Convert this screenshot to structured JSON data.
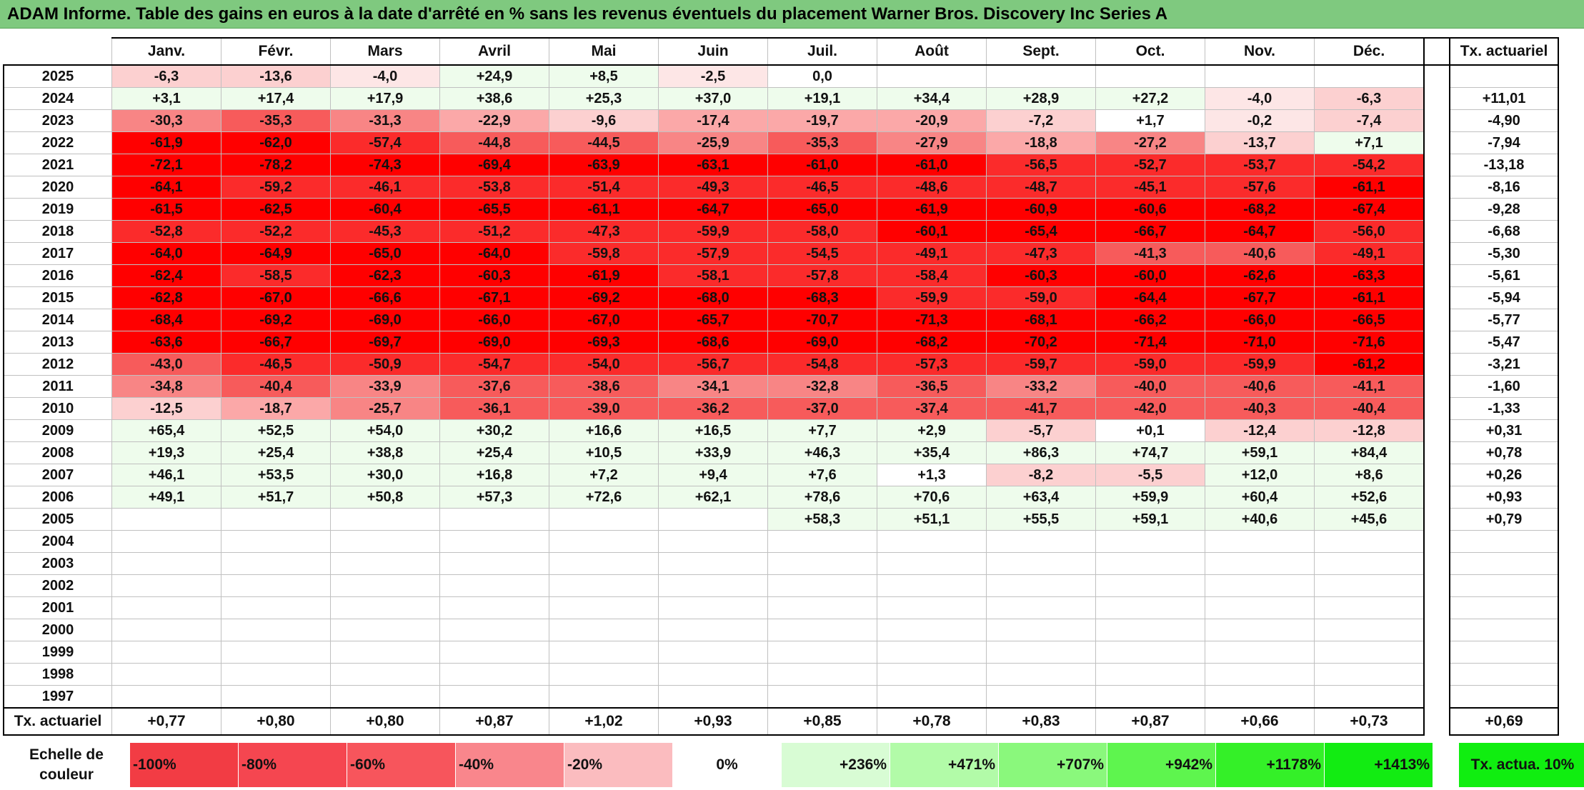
{
  "title": "ADAM Informe. Table des gains en euros à la date d'arrêté en % sans les revenus éventuels du placement Warner Bros. Discovery Inc Series A",
  "months": [
    "Janv.",
    "Févr.",
    "Mars",
    "Avril",
    "Mai",
    "Juin",
    "Juil.",
    "Août",
    "Sept.",
    "Oct.",
    "Nov.",
    "Déc."
  ],
  "ta_header": "Tx. actuariel",
  "rows": [
    {
      "year": "2025",
      "values": [
        "-6,3",
        "-13,6",
        "-4,0",
        "+24,9",
        "+8,5",
        "-2,5",
        "0,0",
        "",
        "",
        "",
        "",
        ""
      ],
      "ta": ""
    },
    {
      "year": "2024",
      "values": [
        "+3,1",
        "+17,4",
        "+17,9",
        "+38,6",
        "+25,3",
        "+37,0",
        "+19,1",
        "+34,4",
        "+28,9",
        "+27,2",
        "-4,0",
        "-6,3"
      ],
      "ta": "+11,01"
    },
    {
      "year": "2023",
      "values": [
        "-30,3",
        "-35,3",
        "-31,3",
        "-22,9",
        "-9,6",
        "-17,4",
        "-19,7",
        "-20,9",
        "-7,2",
        "+1,7",
        "-0,2",
        "-7,4"
      ],
      "ta": "-4,90"
    },
    {
      "year": "2022",
      "values": [
        "-61,9",
        "-62,0",
        "-57,4",
        "-44,8",
        "-44,5",
        "-25,9",
        "-35,3",
        "-27,9",
        "-18,8",
        "-27,2",
        "-13,7",
        "+7,1"
      ],
      "ta": "-7,94"
    },
    {
      "year": "2021",
      "values": [
        "-72,1",
        "-78,2",
        "-74,3",
        "-69,4",
        "-63,9",
        "-63,1",
        "-61,0",
        "-61,0",
        "-56,5",
        "-52,7",
        "-53,7",
        "-54,2"
      ],
      "ta": "-13,18"
    },
    {
      "year": "2020",
      "values": [
        "-64,1",
        "-59,2",
        "-46,1",
        "-53,8",
        "-51,4",
        "-49,3",
        "-46,5",
        "-48,6",
        "-48,7",
        "-45,1",
        "-57,6",
        "-61,1"
      ],
      "ta": "-8,16"
    },
    {
      "year": "2019",
      "values": [
        "-61,5",
        "-62,5",
        "-60,4",
        "-65,5",
        "-61,1",
        "-64,7",
        "-65,0",
        "-61,9",
        "-60,9",
        "-60,6",
        "-68,2",
        "-67,4"
      ],
      "ta": "-9,28"
    },
    {
      "year": "2018",
      "values": [
        "-52,8",
        "-52,2",
        "-45,3",
        "-51,2",
        "-47,3",
        "-59,9",
        "-58,0",
        "-60,1",
        "-65,4",
        "-66,7",
        "-64,7",
        "-56,0"
      ],
      "ta": "-6,68"
    },
    {
      "year": "2017",
      "values": [
        "-64,0",
        "-64,9",
        "-65,0",
        "-64,0",
        "-59,8",
        "-57,9",
        "-54,5",
        "-49,1",
        "-47,3",
        "-41,3",
        "-40,6",
        "-49,1"
      ],
      "ta": "-5,30"
    },
    {
      "year": "2016",
      "values": [
        "-62,4",
        "-58,5",
        "-62,3",
        "-60,3",
        "-61,9",
        "-58,1",
        "-57,8",
        "-58,4",
        "-60,3",
        "-60,0",
        "-62,6",
        "-63,3"
      ],
      "ta": "-5,61"
    },
    {
      "year": "2015",
      "values": [
        "-62,8",
        "-67,0",
        "-66,6",
        "-67,1",
        "-69,2",
        "-68,0",
        "-68,3",
        "-59,9",
        "-59,0",
        "-64,4",
        "-67,7",
        "-61,1"
      ],
      "ta": "-5,94"
    },
    {
      "year": "2014",
      "values": [
        "-68,4",
        "-69,2",
        "-69,0",
        "-66,0",
        "-67,0",
        "-65,7",
        "-70,7",
        "-71,3",
        "-68,1",
        "-66,2",
        "-66,0",
        "-66,5"
      ],
      "ta": "-5,77"
    },
    {
      "year": "2013",
      "values": [
        "-63,6",
        "-66,7",
        "-69,7",
        "-69,0",
        "-69,3",
        "-68,6",
        "-69,0",
        "-68,2",
        "-70,2",
        "-71,4",
        "-71,0",
        "-71,6"
      ],
      "ta": "-5,47"
    },
    {
      "year": "2012",
      "values": [
        "-43,0",
        "-46,5",
        "-50,9",
        "-54,7",
        "-54,0",
        "-56,7",
        "-54,8",
        "-57,3",
        "-59,7",
        "-59,0",
        "-59,9",
        "-61,2"
      ],
      "ta": "-3,21"
    },
    {
      "year": "2011",
      "values": [
        "-34,8",
        "-40,4",
        "-33,9",
        "-37,6",
        "-38,6",
        "-34,1",
        "-32,8",
        "-36,5",
        "-33,2",
        "-40,0",
        "-40,6",
        "-41,1"
      ],
      "ta": "-1,60"
    },
    {
      "year": "2010",
      "values": [
        "-12,5",
        "-18,7",
        "-25,7",
        "-36,1",
        "-39,0",
        "-36,2",
        "-37,0",
        "-37,4",
        "-41,7",
        "-42,0",
        "-40,3",
        "-40,4"
      ],
      "ta": "-1,33"
    },
    {
      "year": "2009",
      "values": [
        "+65,4",
        "+52,5",
        "+54,0",
        "+30,2",
        "+16,6",
        "+16,5",
        "+7,7",
        "+2,9",
        "-5,7",
        "+0,1",
        "-12,4",
        "-12,8"
      ],
      "ta": "+0,31"
    },
    {
      "year": "2008",
      "values": [
        "+19,3",
        "+25,4",
        "+38,8",
        "+25,4",
        "+10,5",
        "+33,9",
        "+46,3",
        "+35,4",
        "+86,3",
        "+74,7",
        "+59,1",
        "+84,4"
      ],
      "ta": "+0,78"
    },
    {
      "year": "2007",
      "values": [
        "+46,1",
        "+53,5",
        "+30,0",
        "+16,8",
        "+7,2",
        "+9,4",
        "+7,6",
        "+1,3",
        "-8,2",
        "-5,5",
        "+12,0",
        "+8,6"
      ],
      "ta": "+0,26"
    },
    {
      "year": "2006",
      "values": [
        "+49,1",
        "+51,7",
        "+50,8",
        "+57,3",
        "+72,6",
        "+62,1",
        "+78,6",
        "+70,6",
        "+63,4",
        "+59,9",
        "+60,4",
        "+52,6"
      ],
      "ta": "+0,93"
    },
    {
      "year": "2005",
      "values": [
        "",
        "",
        "",
        "",
        "",
        "",
        "+58,3",
        "+51,1",
        "+55,5",
        "+59,1",
        "+40,6",
        "+45,6"
      ],
      "ta": "+0,79"
    },
    {
      "year": "2004",
      "values": [
        "",
        "",
        "",
        "",
        "",
        "",
        "",
        "",
        "",
        "",
        "",
        ""
      ],
      "ta": ""
    },
    {
      "year": "2003",
      "values": [
        "",
        "",
        "",
        "",
        "",
        "",
        "",
        "",
        "",
        "",
        "",
        ""
      ],
      "ta": ""
    },
    {
      "year": "2002",
      "values": [
        "",
        "",
        "",
        "",
        "",
        "",
        "",
        "",
        "",
        "",
        "",
        ""
      ],
      "ta": ""
    },
    {
      "year": "2001",
      "values": [
        "",
        "",
        "",
        "",
        "",
        "",
        "",
        "",
        "",
        "",
        "",
        ""
      ],
      "ta": ""
    },
    {
      "year": "2000",
      "values": [
        "",
        "",
        "",
        "",
        "",
        "",
        "",
        "",
        "",
        "",
        "",
        ""
      ],
      "ta": ""
    },
    {
      "year": "1999",
      "values": [
        "",
        "",
        "",
        "",
        "",
        "",
        "",
        "",
        "",
        "",
        "",
        ""
      ],
      "ta": ""
    },
    {
      "year": "1998",
      "values": [
        "",
        "",
        "",
        "",
        "",
        "",
        "",
        "",
        "",
        "",
        "",
        ""
      ],
      "ta": ""
    },
    {
      "year": "1997",
      "values": [
        "",
        "",
        "",
        "",
        "",
        "",
        "",
        "",
        "",
        "",
        "",
        ""
      ],
      "ta": ""
    }
  ],
  "footer": {
    "label": "Tx. actuariel",
    "values": [
      "+0,77",
      "+0,80",
      "+0,80",
      "+0,87",
      "+1,02",
      "+0,93",
      "+0,85",
      "+0,78",
      "+0,83",
      "+0,87",
      "+0,66",
      "+0,73"
    ],
    "ta": "+0,69"
  },
  "scale": {
    "label": "Echelle de couleur",
    "items": [
      {
        "text": "-100%",
        "color": "#f23c44",
        "kind": "neg"
      },
      {
        "text": "-80%",
        "color": "#f54650",
        "kind": "neg"
      },
      {
        "text": "-60%",
        "color": "#f7555c",
        "kind": "neg"
      },
      {
        "text": "-40%",
        "color": "#f9868c",
        "kind": "neg"
      },
      {
        "text": "-20%",
        "color": "#fbbcbf",
        "kind": "neg"
      },
      {
        "text": "0%",
        "color": "#ffffff",
        "kind": "zero"
      },
      {
        "text": "+236%",
        "color": "#d8fcd4",
        "kind": "pos"
      },
      {
        "text": "+471%",
        "color": "#b2fba8",
        "kind": "pos"
      },
      {
        "text": "+707%",
        "color": "#8af87c",
        "kind": "pos"
      },
      {
        "text": "+942%",
        "color": "#5ef54e",
        "kind": "pos"
      },
      {
        "text": "+1178%",
        "color": "#34f028",
        "kind": "pos"
      },
      {
        "text": "+1413%",
        "color": "#12ec12",
        "kind": "pos"
      }
    ],
    "ta_label": "Tx. actua. 10%",
    "ta_color": "#10ee10"
  }
}
